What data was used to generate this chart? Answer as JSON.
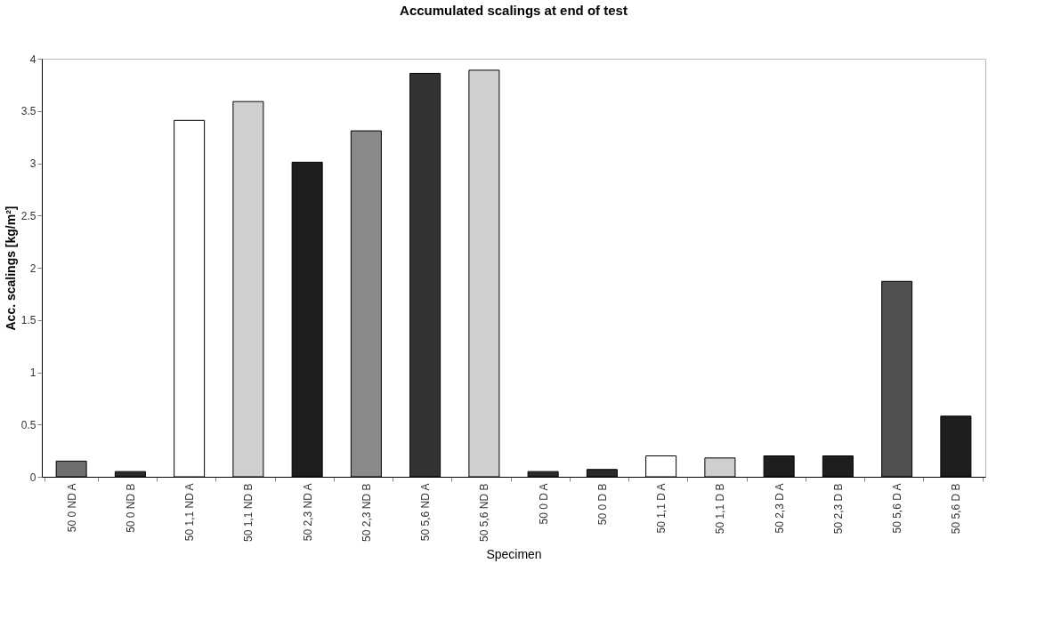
{
  "chart_data": {
    "type": "bar",
    "title": "Accumulated scalings at end of test",
    "xlabel": "Specimen",
    "ylabel": "Acc. scalings [kg/m²]",
    "categories": [
      "50 0 ND A",
      "50 0 ND B",
      "50 1,1 ND A",
      "50 1,1 ND B",
      "50 2,3 ND A",
      "50 2,3 ND B",
      "50 5,6 ND A",
      "50 5,6 ND B",
      "50 0 D A",
      "50 0 D B",
      "50 1,1 D A",
      "50 1,1 D B",
      "50 2,3 D A",
      "50 2,3 D B",
      "50 5,6 D A",
      "50 5,6 D B"
    ],
    "values": [
      0.15,
      0.05,
      3.41,
      3.59,
      3.01,
      3.31,
      3.86,
      3.89,
      0.05,
      0.07,
      0.2,
      0.18,
      0.2,
      0.2,
      1.87,
      0.58
    ],
    "colors": [
      "#6e6e6e",
      "#2a2a2a",
      "#ffffff",
      "#cfcfcf",
      "#1e1e1e",
      "#8a8a8a",
      "#333333",
      "#d0d0d0",
      "#2a2a2a",
      "#2a2a2a",
      "#ffffff",
      "#cfcfcf",
      "#1e1e1e",
      "#1e1e1e",
      "#505050",
      "#1e1e1e"
    ],
    "ylim": [
      0,
      4
    ],
    "yticks": [
      0,
      0.5,
      1,
      1.5,
      2,
      2.5,
      3,
      3.5,
      4
    ],
    "grid": false,
    "legend": false
  }
}
